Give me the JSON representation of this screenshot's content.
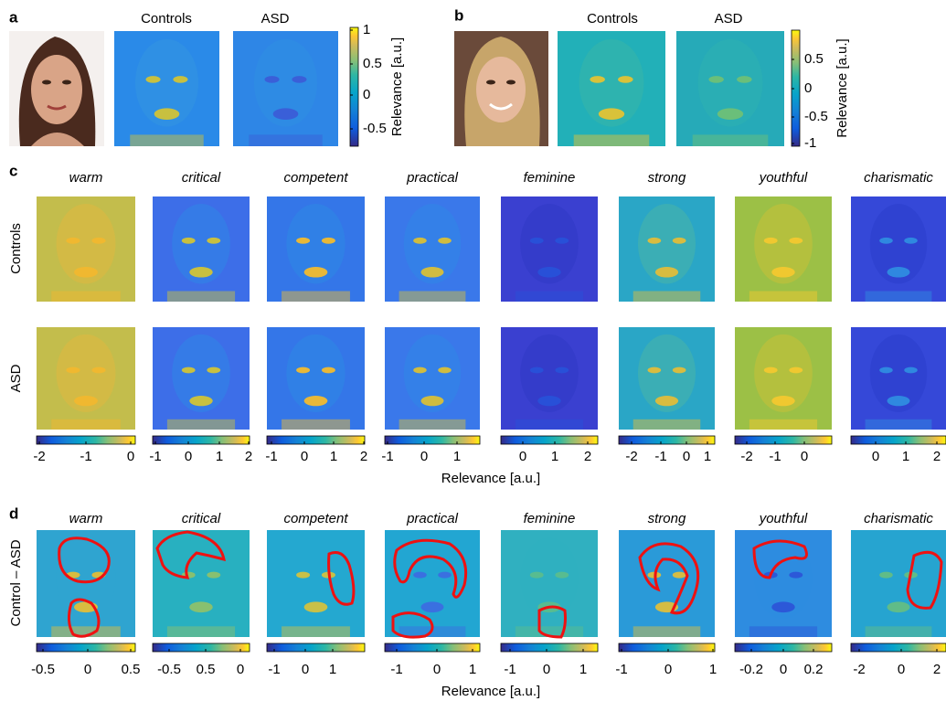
{
  "panel_a": {
    "label": "a",
    "headers": [
      "Controls",
      "ASD"
    ],
    "colorbar_ticks": [
      "1",
      "0.5",
      "0",
      "-0.5"
    ],
    "colorbar_label": "Relevance [a.u.]"
  },
  "panel_b": {
    "label": "b",
    "headers": [
      "Controls",
      "ASD"
    ],
    "colorbar_ticks": [
      "0.5",
      "0",
      "-0.5",
      "-1"
    ],
    "colorbar_label": "Relevance [a.u.]"
  },
  "panel_c": {
    "label": "c",
    "traits": [
      "warm",
      "critical",
      "competent",
      "practical",
      "feminine",
      "strong",
      "youthful",
      "charismatic"
    ],
    "rows": [
      "Controls",
      "ASD"
    ],
    "colorbar_ticks": [
      [
        "-2",
        "-1",
        "0"
      ],
      [
        "-1",
        "0",
        "1",
        "2"
      ],
      [
        "-1",
        "0",
        "1",
        "2"
      ],
      [
        "-1",
        "0",
        "1"
      ],
      [
        "0",
        "1",
        "2"
      ],
      [
        "-2",
        "-1",
        "0",
        "1"
      ],
      [
        "-2",
        "-1",
        "0"
      ],
      [
        "0",
        "1",
        "2"
      ]
    ],
    "axis_label": "Relevance [a.u.]"
  },
  "panel_d": {
    "label": "d",
    "traits": [
      "warm",
      "critical",
      "competent",
      "practical",
      "feminine",
      "strong",
      "youthful",
      "charismatic"
    ],
    "row_label": "Control – ASD",
    "colorbar_ticks": [
      [
        "-0.5",
        "0",
        "0.5"
      ],
      [
        "-0.5",
        "0.5",
        "0"
      ],
      [
        "-1",
        "0",
        "1"
      ],
      [
        "-1",
        "0",
        "1"
      ],
      [
        "-1",
        "0",
        "1"
      ],
      [
        "-1",
        "0",
        "1"
      ],
      [
        "-0.2",
        "0",
        "0.2"
      ],
      [
        "-2",
        "0",
        "2"
      ]
    ],
    "axis_label": "Relevance [a.u.]"
  }
}
